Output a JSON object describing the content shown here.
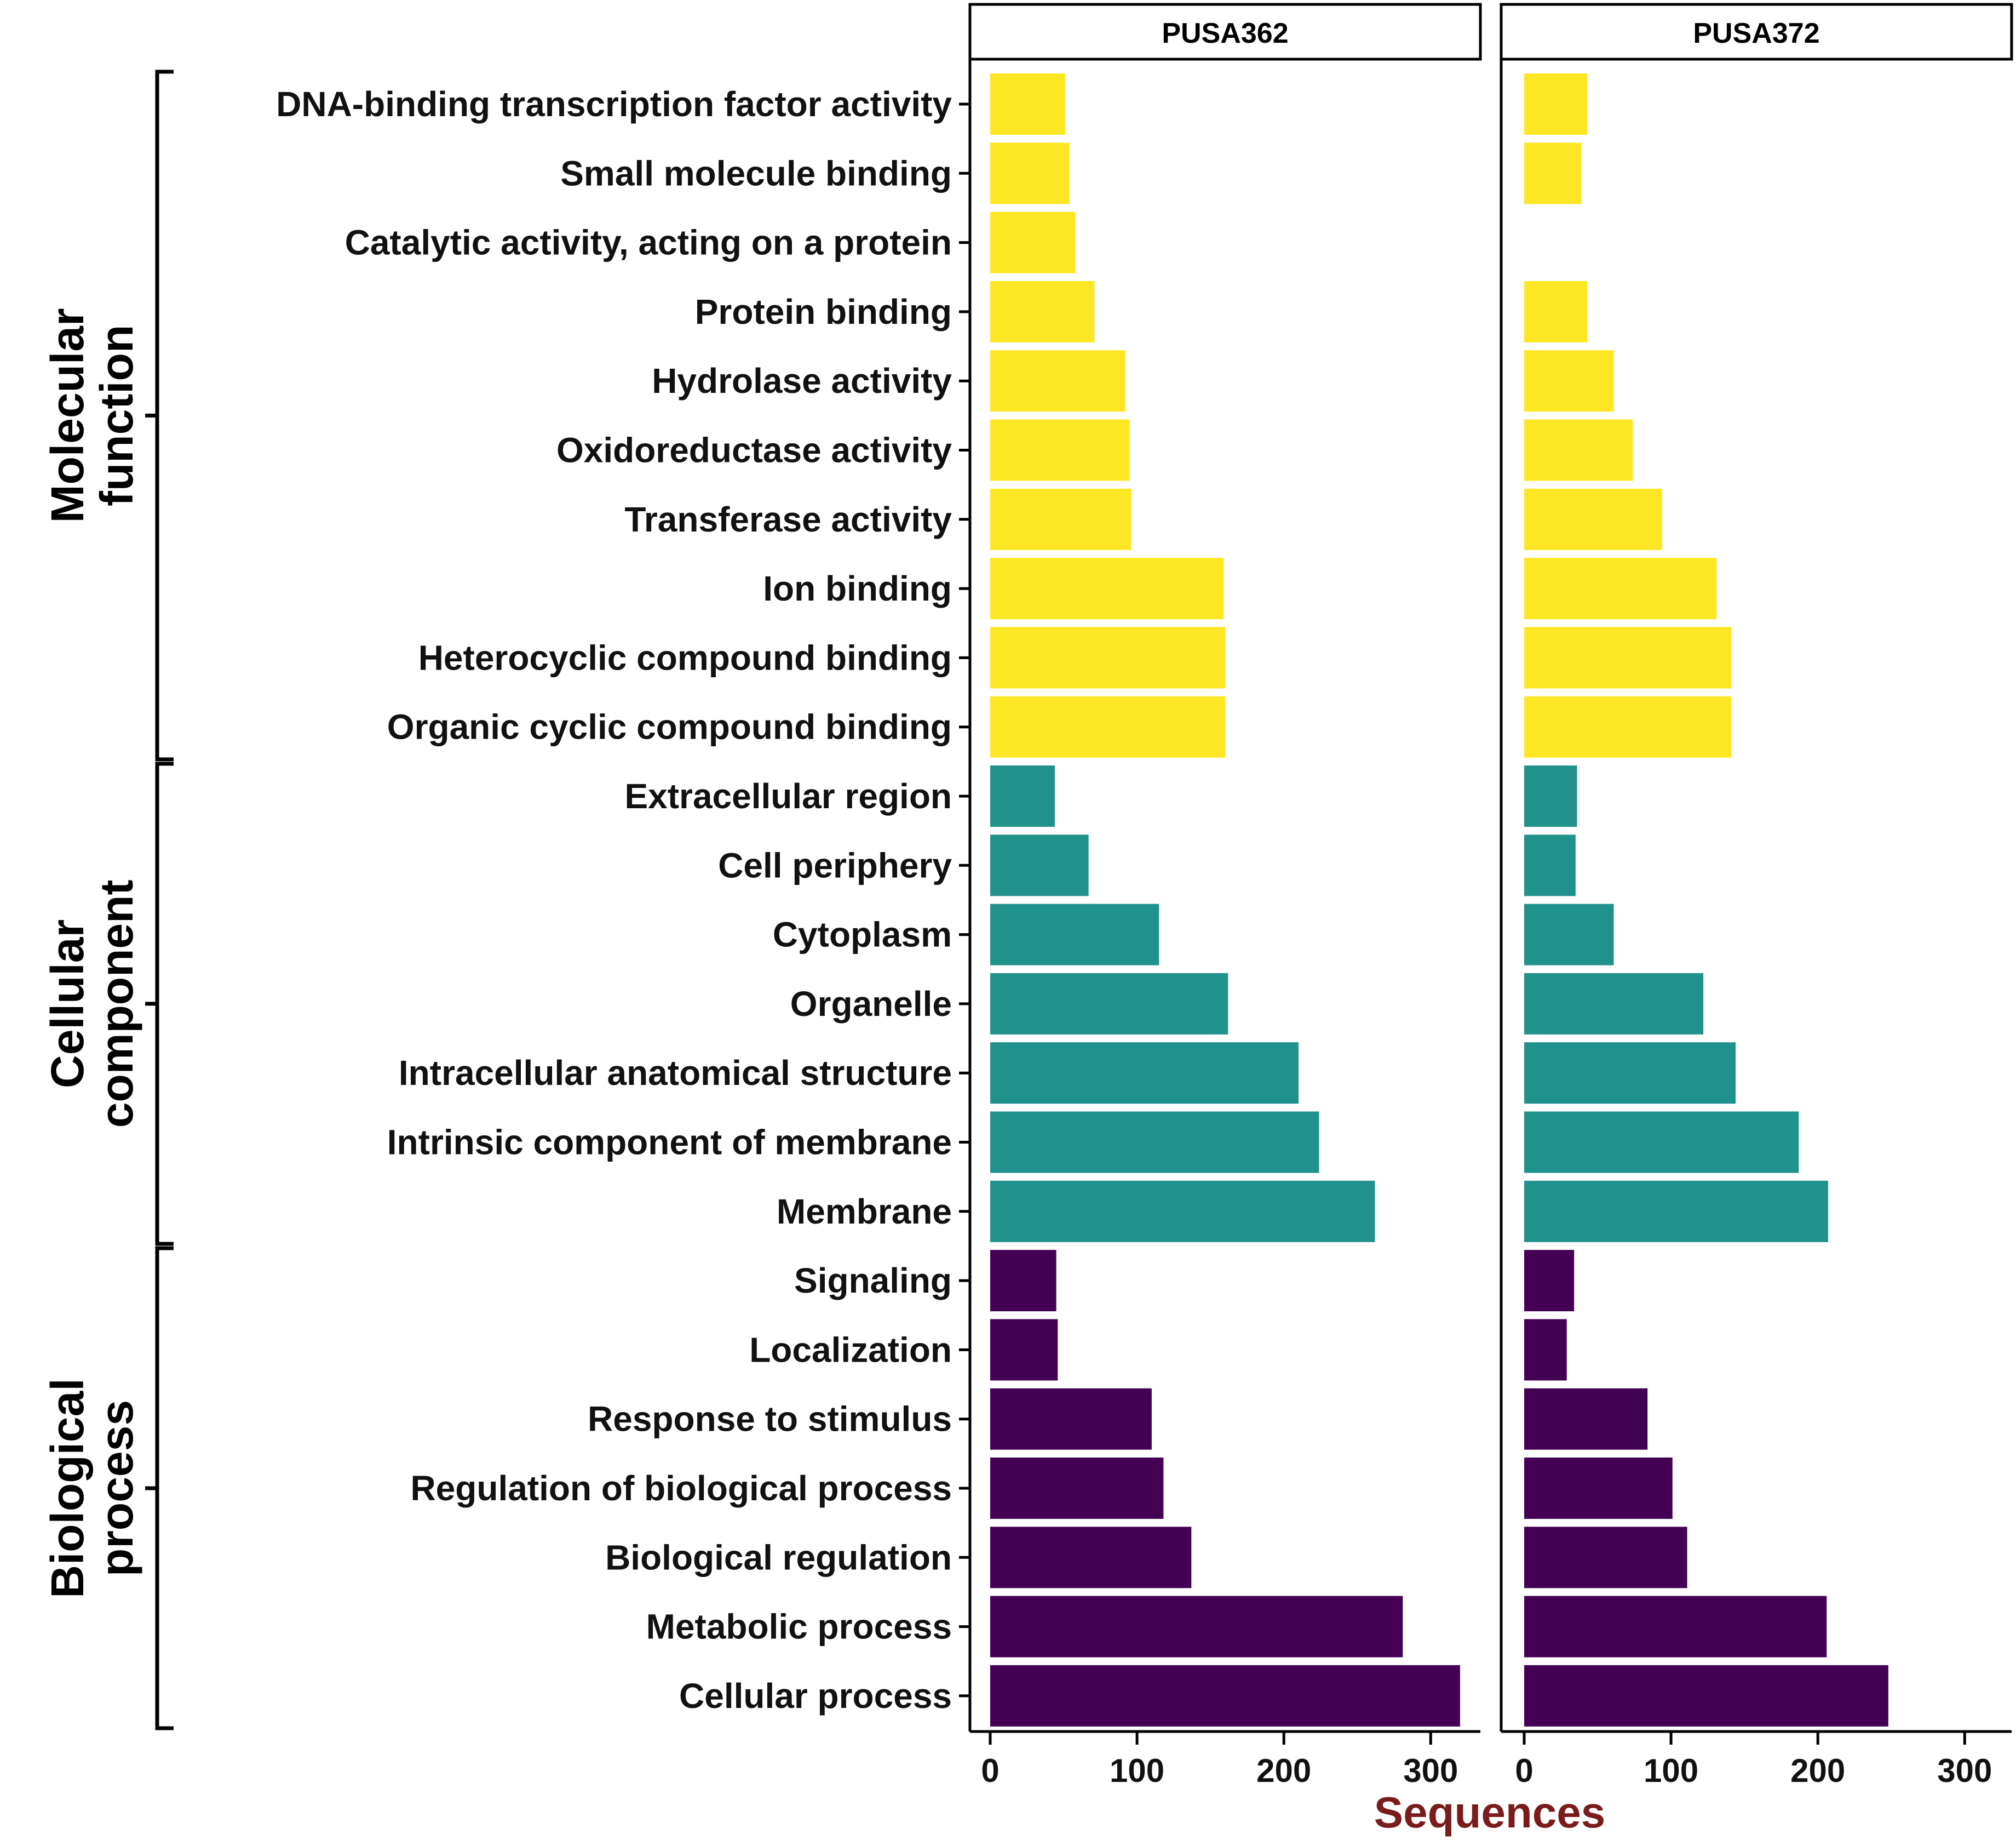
{
  "chart_data": {
    "type": "bar",
    "orientation": "horizontal",
    "xlabel": "Sequences",
    "xlim": [
      0,
      330
    ],
    "xticks": [
      0,
      100,
      200,
      300
    ],
    "categories": [
      "DNA-binding transcription factor activity",
      "Small molecule binding",
      "Catalytic activity, acting on a protein",
      "Protein binding",
      "Hydrolase activity",
      "Oxidoreductase activity",
      "Transferase activity",
      "Ion binding",
      "Heterocyclic compound binding",
      "Organic cyclic compound binding",
      "Extracellular region",
      "Cell periphery",
      "Cytoplasm",
      "Organelle",
      "Intracellular anatomical structure",
      "Intrinsic component of membrane",
      "Membrane",
      "Signaling",
      "Localization",
      "Response to stimulus",
      "Regulation of biological process",
      "Biological regulation",
      "Metabolic process",
      "Cellular process"
    ],
    "category_groups": [
      "Molecular function",
      "Molecular function",
      "Molecular function",
      "Molecular function",
      "Molecular function",
      "Molecular function",
      "Molecular function",
      "Molecular function",
      "Molecular function",
      "Molecular function",
      "Cellular component",
      "Cellular component",
      "Cellular component",
      "Cellular component",
      "Cellular component",
      "Cellular component",
      "Cellular component",
      "Biological process",
      "Biological process",
      "Biological process",
      "Biological process",
      "Biological process",
      "Biological process",
      "Biological process"
    ],
    "groups": [
      {
        "name": "Molecular function",
        "lines": [
          "Molecular",
          "function"
        ],
        "color": "#FDE725"
      },
      {
        "name": "Cellular component",
        "lines": [
          "Cellular",
          "component"
        ],
        "color": "#21918C"
      },
      {
        "name": "Biological process",
        "lines": [
          "Biological",
          "process"
        ],
        "color": "#440154"
      }
    ],
    "series": [
      {
        "name": "PUSA362",
        "values": [
          51,
          54,
          58,
          71,
          92,
          95,
          96,
          159,
          160,
          160,
          44,
          67,
          115,
          162,
          210,
          224,
          262,
          45,
          46,
          110,
          118,
          137,
          281,
          320
        ]
      },
      {
        "name": "PUSA372",
        "values": [
          43,
          39,
          0,
          43,
          61,
          74,
          94,
          131,
          141,
          141,
          36,
          35,
          61,
          122,
          144,
          187,
          207,
          34,
          29,
          84,
          101,
          111,
          206,
          248
        ]
      }
    ],
    "x_title_color": "#7B1C1C"
  }
}
